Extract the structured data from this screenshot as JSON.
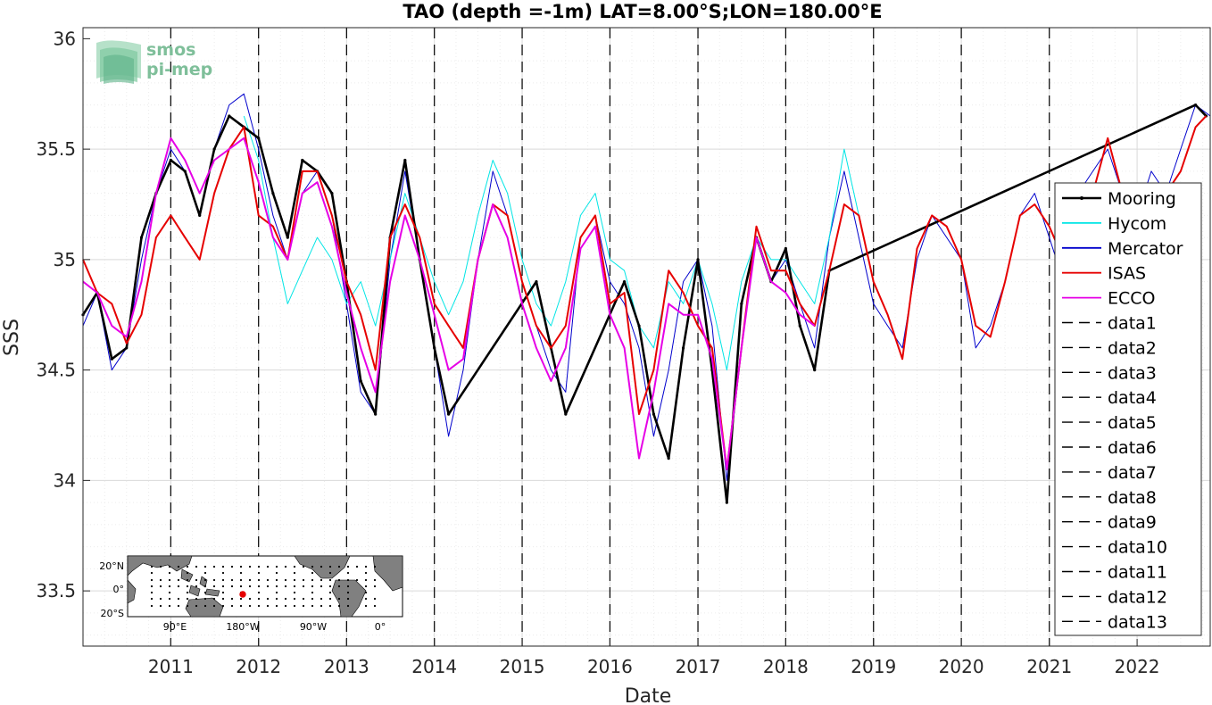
{
  "chart_data": {
    "type": "line",
    "title": "TAO (depth =-1m) LAT=8.00°S;LON=180.00°E",
    "xlabel": "Date",
    "ylabel": "SSS",
    "xlim": [
      "2010-01-01",
      "2022-11-01"
    ],
    "ylim": [
      33.25,
      36.05
    ],
    "grid": true,
    "legend_position": "right",
    "x_ticks": [
      "2011",
      "2012",
      "2013",
      "2014",
      "2015",
      "2016",
      "2017",
      "2018",
      "2019",
      "2020",
      "2021",
      "2022"
    ],
    "y_ticks": [
      33.5,
      34,
      34.5,
      35,
      35.5,
      36
    ],
    "y_tick_labels": [
      "33.5",
      "34",
      "34.5",
      "35",
      "35.5",
      "36"
    ],
    "vlines": [
      "2011-01-01",
      "2012-01-01",
      "2013-01-01",
      "2014-01-01",
      "2015-01-01",
      "2016-01-01",
      "2017-01-01",
      "2018-01-01",
      "2019-01-01",
      "2020-01-01",
      "2021-01-01"
    ],
    "series": [
      {
        "name": "Mooring",
        "color": "#000000",
        "style": "solid-dot",
        "x": [
          "2010-01-01",
          "2010-03-01",
          "2010-05-01",
          "2010-07-01",
          "2010-09-01",
          "2010-11-01",
          "2011-01-01",
          "2011-03-01",
          "2011-05-01",
          "2011-07-01",
          "2011-09-01",
          "2011-11-01",
          "2012-01-01",
          "2012-03-01",
          "2012-05-01",
          "2012-07-01",
          "2012-09-01",
          "2012-11-01",
          "2013-01-01",
          "2013-03-01",
          "2013-05-01",
          "2013-07-01",
          "2013-09-01",
          "2013-11-01",
          "2014-01-01",
          "2014-03-01",
          "2015-03-01",
          "2015-05-01",
          "2015-07-01",
          "2016-03-01",
          "2016-05-01",
          "2016-07-01",
          "2016-09-01",
          "2016-11-01",
          "2017-01-01",
          "2017-03-01",
          "2017-05-01",
          "2017-07-01",
          "2017-09-01",
          "2017-11-01",
          "2018-01-01",
          "2018-03-01",
          "2018-05-01",
          "2018-07-01",
          "2022-09-01",
          "2022-10-15"
        ],
        "y": [
          34.75,
          34.85,
          34.55,
          34.6,
          35.1,
          35.3,
          35.45,
          35.4,
          35.2,
          35.5,
          35.65,
          35.6,
          35.55,
          35.3,
          35.1,
          35.45,
          35.4,
          35.3,
          34.9,
          34.45,
          34.3,
          35.1,
          35.45,
          35.0,
          34.6,
          34.3,
          34.9,
          34.6,
          34.3,
          34.9,
          34.7,
          34.3,
          34.1,
          34.6,
          35.0,
          34.5,
          33.9,
          34.8,
          35.1,
          34.9,
          35.05,
          34.7,
          34.5,
          34.95,
          35.7,
          35.65
        ]
      },
      {
        "name": "Hycom",
        "color": "#00e5e5",
        "style": "solid",
        "x": [
          "2011-11-01",
          "2012-01-01",
          "2012-03-01",
          "2012-05-01",
          "2012-07-01",
          "2012-09-01",
          "2012-11-01",
          "2013-01-01",
          "2013-03-01",
          "2013-05-01",
          "2013-07-01",
          "2013-09-01",
          "2013-11-01",
          "2014-01-01",
          "2014-03-01",
          "2014-05-01",
          "2014-07-01",
          "2014-09-01",
          "2014-11-01",
          "2015-01-01",
          "2015-03-01",
          "2015-05-01",
          "2015-07-01",
          "2015-09-01",
          "2015-11-01",
          "2016-01-01",
          "2016-03-01",
          "2016-05-01",
          "2016-07-01",
          "2016-09-01",
          "2016-11-01",
          "2017-01-01",
          "2017-03-01",
          "2017-05-01",
          "2017-07-01",
          "2017-09-01",
          "2017-11-01",
          "2018-01-01",
          "2018-03-01",
          "2018-05-01",
          "2018-07-01",
          "2018-09-01",
          "2018-11-01"
        ],
        "y": [
          35.65,
          35.45,
          35.1,
          34.8,
          34.95,
          35.1,
          35.0,
          34.8,
          34.9,
          34.7,
          35.0,
          35.3,
          35.1,
          34.9,
          34.75,
          34.9,
          35.2,
          35.45,
          35.3,
          35.0,
          34.8,
          34.7,
          34.9,
          35.2,
          35.3,
          35.0,
          34.95,
          34.7,
          34.6,
          34.9,
          34.8,
          35.0,
          34.8,
          34.5,
          34.9,
          35.1,
          35.0,
          35.0,
          34.9,
          34.8,
          35.1,
          35.5,
          35.2
        ]
      },
      {
        "name": "Mercator",
        "color": "#0000cc",
        "style": "solid",
        "x": [
          "2010-01-01",
          "2010-03-01",
          "2010-05-01",
          "2010-07-01",
          "2010-09-01",
          "2010-11-01",
          "2011-01-01",
          "2011-03-01",
          "2011-05-01",
          "2011-07-01",
          "2011-09-01",
          "2011-11-01",
          "2012-01-01",
          "2012-03-01",
          "2012-05-01",
          "2012-07-01",
          "2012-09-01",
          "2012-11-01",
          "2013-01-01",
          "2013-03-01",
          "2013-05-01",
          "2013-07-01",
          "2013-09-01",
          "2013-11-01",
          "2014-01-01",
          "2014-03-01",
          "2014-05-01",
          "2014-07-01",
          "2014-09-01",
          "2014-11-01",
          "2015-01-01",
          "2015-03-01",
          "2015-05-01",
          "2015-07-01",
          "2015-09-01",
          "2015-11-01",
          "2016-01-01",
          "2016-03-01",
          "2016-05-01",
          "2016-07-01",
          "2016-09-01",
          "2016-11-01",
          "2017-01-01",
          "2017-03-01",
          "2017-05-01",
          "2017-07-01",
          "2017-09-01",
          "2017-11-01",
          "2018-01-01",
          "2018-03-01",
          "2018-05-01",
          "2018-07-01",
          "2018-09-01",
          "2018-11-01",
          "2019-01-01",
          "2019-03-01",
          "2019-05-01",
          "2019-07-01",
          "2019-09-01",
          "2019-11-01",
          "2020-01-01",
          "2020-03-01",
          "2020-05-01",
          "2020-07-01",
          "2020-09-01",
          "2020-11-01",
          "2021-01-01",
          "2021-03-01",
          "2021-05-01",
          "2021-07-01",
          "2021-09-01",
          "2021-11-01",
          "2022-01-01",
          "2022-03-01",
          "2022-05-01",
          "2022-07-01",
          "2022-09-01",
          "2022-11-01"
        ],
        "y": [
          34.7,
          34.85,
          34.5,
          34.6,
          35.0,
          35.3,
          35.5,
          35.4,
          35.2,
          35.5,
          35.7,
          35.75,
          35.5,
          35.2,
          35.0,
          35.3,
          35.4,
          35.2,
          34.8,
          34.4,
          34.3,
          35.0,
          35.4,
          35.0,
          34.6,
          34.2,
          34.5,
          35.0,
          35.4,
          35.2,
          34.9,
          34.7,
          34.5,
          34.4,
          35.1,
          35.2,
          34.9,
          34.8,
          34.6,
          34.2,
          34.5,
          34.9,
          35.0,
          34.7,
          34.0,
          34.6,
          35.1,
          34.9,
          35.0,
          34.8,
          34.6,
          35.1,
          35.4,
          35.1,
          34.8,
          34.7,
          34.6,
          35.0,
          35.2,
          35.1,
          35.0,
          34.6,
          34.7,
          34.9,
          35.2,
          35.3,
          35.1,
          34.9,
          35.3,
          35.4,
          35.5,
          35.3,
          35.2,
          35.4,
          35.3,
          35.5,
          35.7,
          35.65
        ]
      },
      {
        "name": "ISAS",
        "color": "#e60000",
        "style": "solid",
        "x": [
          "2010-01-01",
          "2010-03-01",
          "2010-05-01",
          "2010-07-01",
          "2010-09-01",
          "2010-11-01",
          "2011-01-01",
          "2011-03-01",
          "2011-05-01",
          "2011-07-01",
          "2011-09-01",
          "2011-11-01",
          "2012-01-01",
          "2012-03-01",
          "2012-05-01",
          "2012-07-01",
          "2012-09-01",
          "2012-11-01",
          "2013-01-01",
          "2013-03-01",
          "2013-05-01",
          "2013-07-01",
          "2013-09-01",
          "2013-11-01",
          "2014-01-01",
          "2014-03-01",
          "2014-05-01",
          "2014-07-01",
          "2014-09-01",
          "2014-11-01",
          "2015-01-01",
          "2015-03-01",
          "2015-05-01",
          "2015-07-01",
          "2015-09-01",
          "2015-11-01",
          "2016-01-01",
          "2016-03-01",
          "2016-05-01",
          "2016-07-01",
          "2016-09-01",
          "2016-11-01",
          "2017-01-01",
          "2017-03-01",
          "2017-05-01",
          "2017-07-01",
          "2017-09-01",
          "2017-11-01",
          "2018-01-01",
          "2018-03-01",
          "2018-05-01",
          "2018-07-01",
          "2018-09-01",
          "2018-11-01",
          "2019-01-01",
          "2019-03-01",
          "2019-05-01",
          "2019-07-01",
          "2019-09-01",
          "2019-11-01",
          "2020-01-01",
          "2020-03-01",
          "2020-05-01",
          "2020-07-01",
          "2020-09-01",
          "2020-11-01",
          "2021-01-01",
          "2021-03-01",
          "2021-05-01",
          "2021-07-01",
          "2021-09-01",
          "2021-11-01",
          "2022-01-01",
          "2022-03-01",
          "2022-05-01",
          "2022-07-01",
          "2022-09-01",
          "2022-10-15"
        ],
        "y": [
          35.0,
          34.85,
          34.8,
          34.62,
          34.75,
          35.1,
          35.2,
          35.1,
          35.0,
          35.3,
          35.5,
          35.6,
          35.2,
          35.15,
          35.0,
          35.4,
          35.4,
          35.2,
          34.9,
          34.75,
          34.5,
          35.1,
          35.25,
          35.1,
          34.8,
          34.7,
          34.6,
          35.0,
          35.25,
          35.2,
          34.9,
          34.7,
          34.6,
          34.7,
          35.1,
          35.2,
          34.8,
          34.85,
          34.3,
          34.5,
          34.95,
          34.85,
          34.7,
          34.6,
          34.05,
          34.6,
          35.15,
          34.95,
          34.95,
          34.8,
          34.7,
          34.95,
          35.25,
          35.2,
          34.9,
          34.75,
          34.55,
          35.05,
          35.2,
          35.15,
          35.0,
          34.7,
          34.65,
          34.9,
          35.2,
          35.25,
          35.15,
          35.0,
          35.2,
          35.3,
          35.55,
          35.3,
          35.1,
          35.2,
          35.3,
          35.4,
          35.6,
          35.65
        ]
      },
      {
        "name": "ECCO",
        "color": "#e600e6",
        "style": "solid",
        "x": [
          "2010-01-01",
          "2010-03-01",
          "2010-05-01",
          "2010-07-01",
          "2010-09-01",
          "2010-11-01",
          "2011-01-01",
          "2011-03-01",
          "2011-05-01",
          "2011-07-01",
          "2011-09-01",
          "2011-11-01",
          "2012-01-01",
          "2012-03-01",
          "2012-05-01",
          "2012-07-01",
          "2012-09-01",
          "2012-11-01",
          "2013-01-01",
          "2013-03-01",
          "2013-05-01",
          "2013-07-01",
          "2013-09-01",
          "2013-11-01",
          "2014-01-01",
          "2014-03-01",
          "2014-05-01",
          "2014-07-01",
          "2014-09-01",
          "2014-11-01",
          "2015-01-01",
          "2015-03-01",
          "2015-05-01",
          "2015-07-01",
          "2015-09-01",
          "2015-11-01",
          "2016-01-01",
          "2016-03-01",
          "2016-05-01",
          "2016-07-01",
          "2016-09-01",
          "2016-11-01",
          "2017-01-01",
          "2017-03-01",
          "2017-05-01",
          "2017-07-01",
          "2017-09-01",
          "2017-11-01",
          "2018-01-01",
          "2018-03-01",
          "2018-05-01"
        ],
        "y": [
          34.9,
          34.85,
          34.7,
          34.65,
          34.9,
          35.3,
          35.55,
          35.45,
          35.3,
          35.45,
          35.5,
          35.55,
          35.35,
          35.1,
          35.0,
          35.3,
          35.35,
          35.15,
          34.85,
          34.6,
          34.4,
          34.9,
          35.2,
          35.0,
          34.75,
          34.5,
          34.55,
          35.0,
          35.25,
          35.1,
          34.8,
          34.6,
          34.45,
          34.6,
          35.05,
          35.15,
          34.75,
          34.6,
          34.1,
          34.4,
          34.8,
          34.75,
          34.75,
          34.55,
          34.05,
          34.6,
          35.1,
          34.9,
          34.85,
          34.75,
          34.7
        ]
      }
    ],
    "legend": [
      "Mooring",
      "Hycom",
      "Mercator",
      "ISAS",
      "ECCO",
      "data1",
      "data2",
      "data3",
      "data4",
      "data5",
      "data6",
      "data7",
      "data8",
      "data9",
      "data10",
      "data11",
      "data12",
      "data13"
    ]
  },
  "logo": {
    "line1": "smos",
    "line2": "pi-mep"
  },
  "inset_map": {
    "y_labels": [
      "20°N",
      "0°",
      "20°S"
    ],
    "x_labels": [
      "90°E",
      "180°W",
      "90°W",
      "0°"
    ],
    "marker_color": "#e60000"
  }
}
